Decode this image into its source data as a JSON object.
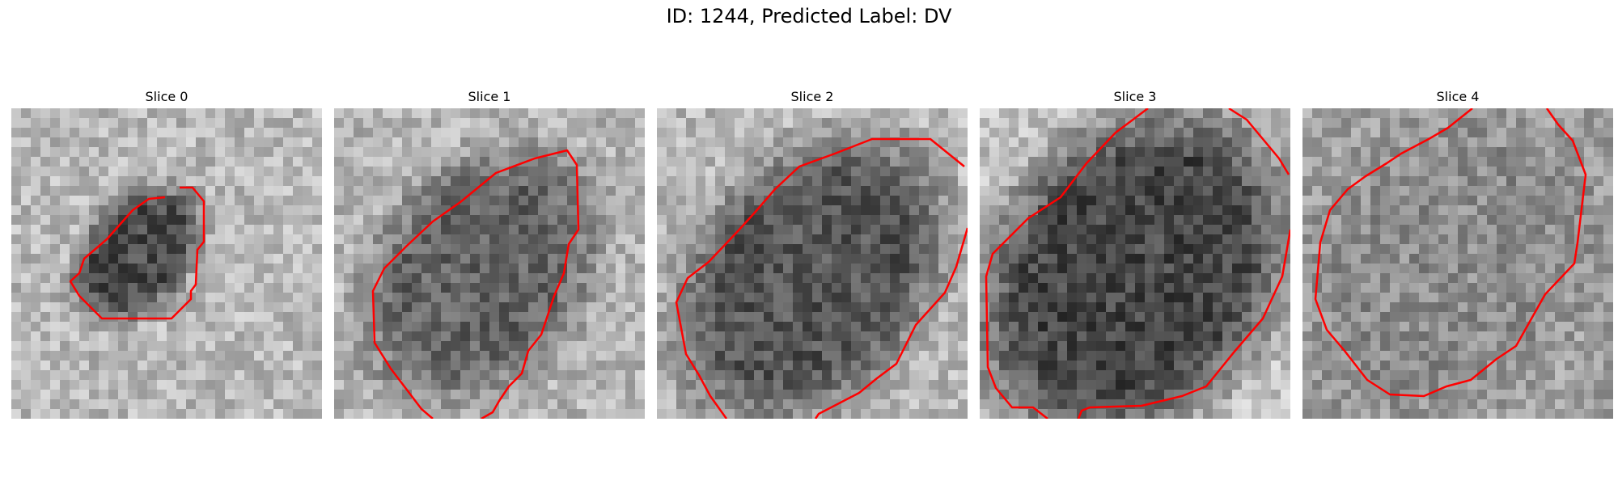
{
  "figure": {
    "title": "ID: 1244, Predicted Label: DV"
  },
  "panels": [
    {
      "title": "Slice 0"
    },
    {
      "title": "Slice 1"
    },
    {
      "title": "Slice 2"
    },
    {
      "title": "Slice 3"
    },
    {
      "title": "Slice 4"
    }
  ],
  "colors": {
    "contour": "#ff0000",
    "background": "#ffffff"
  }
}
